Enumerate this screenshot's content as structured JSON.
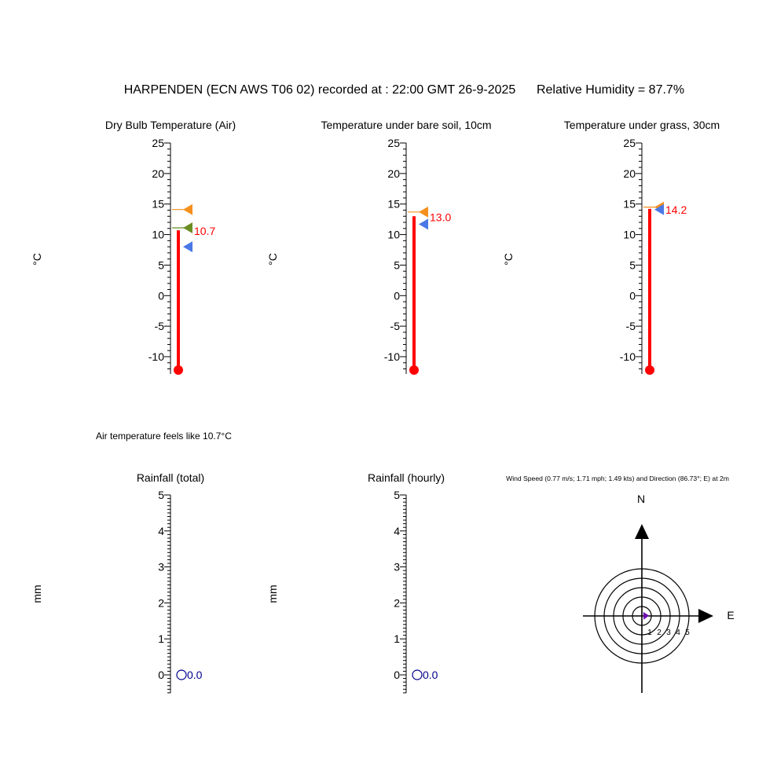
{
  "header": {
    "title": "HARPENDEN (ECN AWS T06 02) recorded at : 22:00 GMT  26-9-2025",
    "humidity": "Relative Humidity = 87.7%"
  },
  "feels_like": "Air temperature feels like 10.7°C",
  "colors": {
    "mercury": "#ff0000",
    "max_marker": "#f5901e",
    "min_marker": "#4a78e6",
    "mean_marker": "#6b8e23",
    "rain_value": "#00008b",
    "axis": "#000000"
  },
  "chart_data": [
    {
      "type": "thermometer",
      "title": "Dry Bulb Temperature (Air)",
      "ylabel": "°C",
      "ylim": [
        -12,
        25
      ],
      "ticks": [
        "25",
        "20",
        "15",
        "10",
        "5",
        "0",
        "-5",
        "-10"
      ],
      "value": 10.7,
      "value_label": "10.7",
      "markers": [
        {
          "kind": "max",
          "value": 14.1
        },
        {
          "kind": "mean",
          "value": 11.1
        },
        {
          "kind": "min",
          "value": 8.0
        }
      ]
    },
    {
      "type": "thermometer",
      "title": "Temperature under bare soil, 10cm",
      "ylabel": "°C",
      "ylim": [
        -12,
        25
      ],
      "ticks": [
        "25",
        "20",
        "15",
        "10",
        "5",
        "0",
        "-5",
        "-10"
      ],
      "value": 13.0,
      "value_label": "13.0",
      "markers": [
        {
          "kind": "max",
          "value": 13.7
        },
        {
          "kind": "min",
          "value": 11.7
        }
      ]
    },
    {
      "type": "thermometer",
      "title": "Temperature under grass, 30cm",
      "ylabel": "°C",
      "ylim": [
        -12,
        25
      ],
      "ticks": [
        "25",
        "20",
        "15",
        "10",
        "5",
        "0",
        "-5",
        "-10"
      ],
      "value": 14.2,
      "value_label": "14.2",
      "markers": [
        {
          "kind": "max",
          "value": 14.5
        },
        {
          "kind": "min",
          "value": 14.1
        }
      ]
    },
    {
      "type": "rain_gauge",
      "title": "Rainfall (total)",
      "ylabel": "mm",
      "ylim": [
        0,
        5
      ],
      "ticks": [
        "5",
        "4",
        "3",
        "2",
        "1",
        "0"
      ],
      "value": 0.0,
      "value_label": "0.0"
    },
    {
      "type": "rain_gauge",
      "title": "Rainfall (hourly)",
      "ylabel": "mm",
      "ylim": [
        0,
        5
      ],
      "ticks": [
        "5",
        "4",
        "3",
        "2",
        "1",
        "0"
      ],
      "value": 0.0,
      "value_label": "0.0"
    },
    {
      "type": "wind_rose",
      "title": "Wind Speed (0.77 m/s; 1.71 mph; 1.49 kts) and Direction (86.73°; E) at 2m",
      "north_label": "N",
      "east_label": "E",
      "ring_labels": [
        "1",
        "2",
        "3",
        "4",
        "5"
      ],
      "speed_ms": 0.77,
      "direction_deg": 86.73
    }
  ]
}
